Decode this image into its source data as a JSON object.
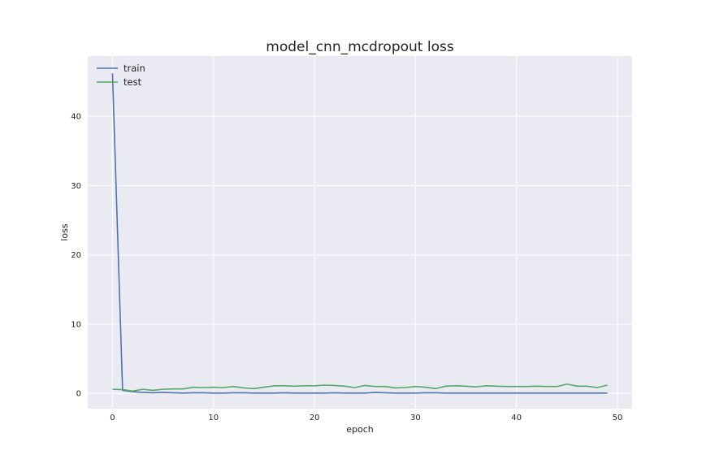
{
  "chart_data": {
    "type": "line",
    "title": "model_cnn_mcdropout loss",
    "xlabel": "epoch",
    "ylabel": "loss",
    "xlim": [
      -2.45,
      51.45
    ],
    "ylim": [
      -2.2,
      48.7
    ],
    "xticks": [
      "0",
      "10",
      "20",
      "30",
      "40",
      "50"
    ],
    "yticks": [
      "0",
      "10",
      "20",
      "30",
      "40"
    ],
    "grid": true,
    "legend_position": "top-left",
    "x": [
      0,
      1,
      2,
      3,
      4,
      5,
      6,
      7,
      8,
      9,
      10,
      11,
      12,
      13,
      14,
      15,
      16,
      17,
      18,
      19,
      20,
      21,
      22,
      23,
      24,
      25,
      26,
      27,
      28,
      29,
      30,
      31,
      32,
      33,
      34,
      35,
      36,
      37,
      38,
      39,
      40,
      41,
      42,
      43,
      44,
      45,
      46,
      47,
      48,
      49
    ],
    "series": [
      {
        "name": "train",
        "color": "#4c72b0",
        "values": [
          46.2,
          0.45,
          0.25,
          0.15,
          0.1,
          0.15,
          0.1,
          0.05,
          0.1,
          0.1,
          0.05,
          0.05,
          0.1,
          0.1,
          0.05,
          0.05,
          0.05,
          0.1,
          0.05,
          0.05,
          0.05,
          0.05,
          0.1,
          0.05,
          0.05,
          0.05,
          0.15,
          0.1,
          0.05,
          0.05,
          0.05,
          0.1,
          0.1,
          0.05,
          0.05,
          0.05,
          0.05,
          0.05,
          0.05,
          0.05,
          0.05,
          0.05,
          0.05,
          0.05,
          0.05,
          0.05,
          0.05,
          0.05,
          0.05,
          0.05
        ]
      },
      {
        "name": "test",
        "color": "#55a868",
        "values": [
          0.6,
          0.55,
          0.35,
          0.6,
          0.45,
          0.6,
          0.65,
          0.65,
          0.9,
          0.85,
          0.9,
          0.85,
          1.0,
          0.8,
          0.7,
          0.9,
          1.1,
          1.1,
          1.05,
          1.1,
          1.1,
          1.2,
          1.15,
          1.05,
          0.85,
          1.15,
          1.0,
          1.0,
          0.8,
          0.85,
          1.0,
          0.9,
          0.7,
          1.05,
          1.1,
          1.05,
          0.95,
          1.1,
          1.05,
          1.0,
          1.0,
          1.0,
          1.05,
          1.0,
          1.0,
          1.35,
          1.05,
          1.05,
          0.85,
          1.2
        ]
      }
    ]
  }
}
